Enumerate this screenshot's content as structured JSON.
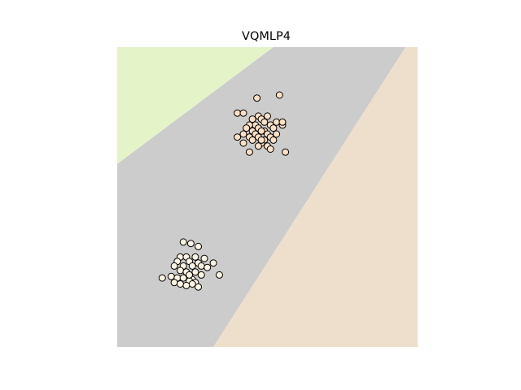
{
  "chart_data": {
    "type": "scatter",
    "title": "VQMLP4",
    "xlabel": "",
    "ylabel": "",
    "xlim": [
      0,
      1
    ],
    "ylim": [
      0,
      1
    ],
    "axes_visible": false,
    "grid": false,
    "legend": "none",
    "decision_regions": [
      {
        "label": "class-0",
        "color": "#e4f3c8",
        "polygon": [
          [
            0.0,
            1.0
          ],
          [
            0.52,
            1.0
          ],
          [
            0.0,
            0.61
          ]
        ]
      },
      {
        "label": "class-1",
        "color": "#cccccc",
        "polygon": [
          [
            0.0,
            0.61
          ],
          [
            0.52,
            1.0
          ],
          [
            0.96,
            1.0
          ],
          [
            0.32,
            0.0
          ],
          [
            0.0,
            0.0
          ]
        ]
      },
      {
        "label": "class-2",
        "color": "#eedfcc",
        "polygon": [
          [
            0.96,
            1.0
          ],
          [
            1.0,
            1.0
          ],
          [
            1.0,
            0.0
          ],
          [
            0.32,
            0.0
          ]
        ]
      }
    ],
    "series": [
      {
        "color": "#fde0c6",
        "x": [
          0.465,
          0.54,
          0.4,
          0.42,
          0.47,
          0.5,
          0.45,
          0.48,
          0.53,
          0.49,
          0.46,
          0.44,
          0.51,
          0.55,
          0.43,
          0.47,
          0.52,
          0.49,
          0.45,
          0.48,
          0.5,
          0.42,
          0.46,
          0.53,
          0.44,
          0.51,
          0.47,
          0.49,
          0.52,
          0.45,
          0.48,
          0.55,
          0.42,
          0.5,
          0.47,
          0.56,
          0.4,
          0.51,
          0.44,
          0.48
        ],
        "y": [
          0.83,
          0.84,
          0.78,
          0.78,
          0.77,
          0.77,
          0.76,
          0.76,
          0.75,
          0.75,
          0.74,
          0.74,
          0.74,
          0.74,
          0.73,
          0.73,
          0.73,
          0.72,
          0.72,
          0.72,
          0.71,
          0.71,
          0.71,
          0.71,
          0.7,
          0.7,
          0.7,
          0.69,
          0.69,
          0.69,
          0.68,
          0.75,
          0.68,
          0.67,
          0.67,
          0.65,
          0.7,
          0.66,
          0.65,
          0.69
        ]
      },
      {
        "color": "#fdf4e3",
        "x": [
          0.22,
          0.245,
          0.27,
          0.21,
          0.23,
          0.26,
          0.29,
          0.2,
          0.24,
          0.27,
          0.32,
          0.19,
          0.22,
          0.25,
          0.28,
          0.3,
          0.21,
          0.23,
          0.26,
          0.15,
          0.18,
          0.2,
          0.22,
          0.25,
          0.28,
          0.34,
          0.19,
          0.24,
          0.26,
          0.21,
          0.25,
          0.23,
          0.27,
          0.24
        ],
        "y": [
          0.35,
          0.345,
          0.335,
          0.3,
          0.3,
          0.3,
          0.295,
          0.285,
          0.285,
          0.28,
          0.28,
          0.27,
          0.27,
          0.27,
          0.27,
          0.265,
          0.255,
          0.25,
          0.25,
          0.23,
          0.235,
          0.23,
          0.23,
          0.225,
          0.24,
          0.24,
          0.215,
          0.22,
          0.215,
          0.21,
          0.21,
          0.205,
          0.2,
          0.24
        ]
      }
    ]
  }
}
